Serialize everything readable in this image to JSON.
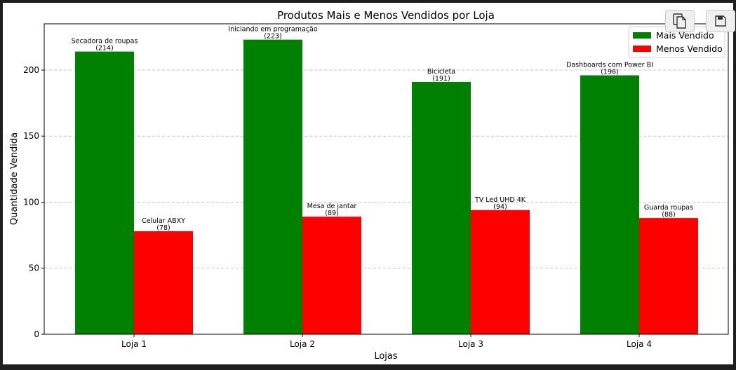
{
  "toolbar": {
    "copy_icon": "copy-icon",
    "save_icon": "save-icon"
  },
  "colors": {
    "mais": "#008000",
    "menos": "#ff0000",
    "grid": "#b0b0b0"
  },
  "chart_data": {
    "type": "bar",
    "title": "Produtos Mais e Menos Vendidos por Loja",
    "xlabel": "Lojas",
    "ylabel": "Quantidade Vendida",
    "categories": [
      "Loja 1",
      "Loja 2",
      "Loja 3",
      "Loja 4"
    ],
    "ylim": [
      0,
      235
    ],
    "yticks": [
      0,
      50,
      100,
      150,
      200
    ],
    "grid": "y-dashed",
    "legend_position": "top-right",
    "series": [
      {
        "name": "Mais Vendido",
        "color": "#008000",
        "values": [
          214,
          223,
          191,
          196
        ],
        "labels": [
          "Secadora de roupas",
          "Iniciando em programação",
          "Bicicleta",
          "Dashboards com Power BI"
        ]
      },
      {
        "name": "Menos Vendido",
        "color": "#ff0000",
        "values": [
          78,
          89,
          94,
          88
        ],
        "labels": [
          "Celular ABXY",
          "Mesa de jantar",
          "TV Led UHD 4K",
          "Guarda roupas"
        ]
      }
    ]
  }
}
